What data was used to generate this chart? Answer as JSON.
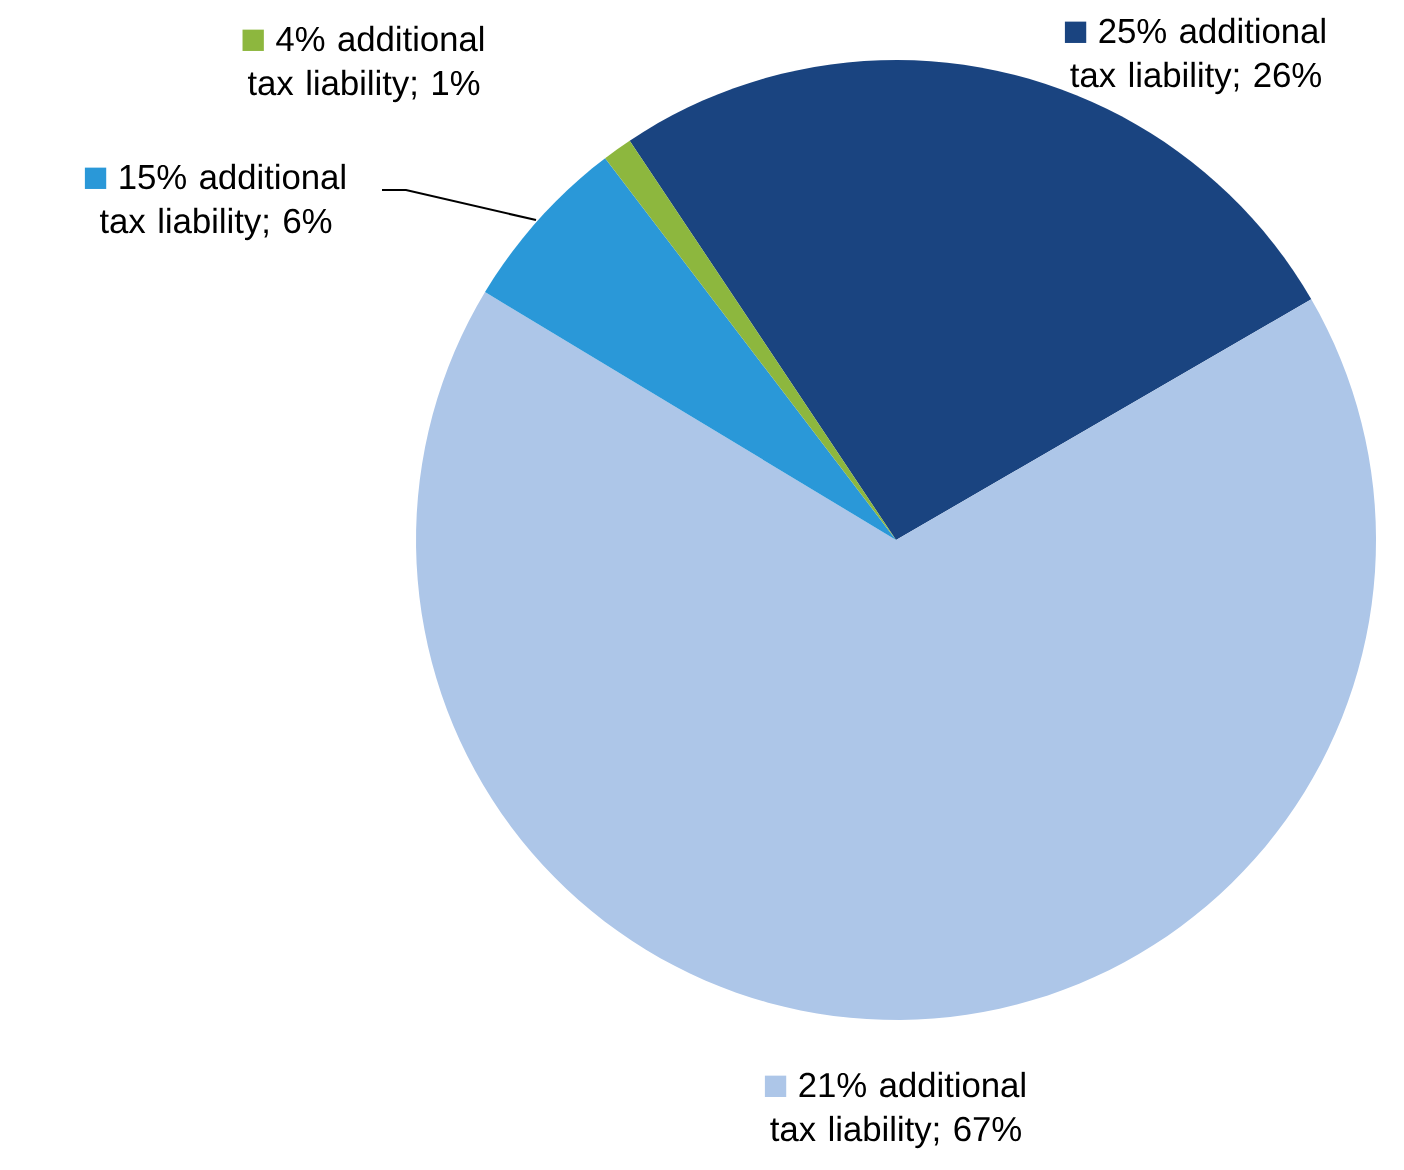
{
  "chart_data": {
    "type": "pie",
    "categories": [
      "25% additional tax liability; 26%",
      "21% additional tax liability; 67%",
      "15% additional tax liability; 6%",
      "4% additional tax liability; 1%"
    ],
    "values": [
      26,
      67,
      6,
      1
    ],
    "colors": [
      "#1a4480",
      "#adc6e8",
      "#2a98d8",
      "#8db73e"
    ],
    "legend": "bottom left"
  }
}
